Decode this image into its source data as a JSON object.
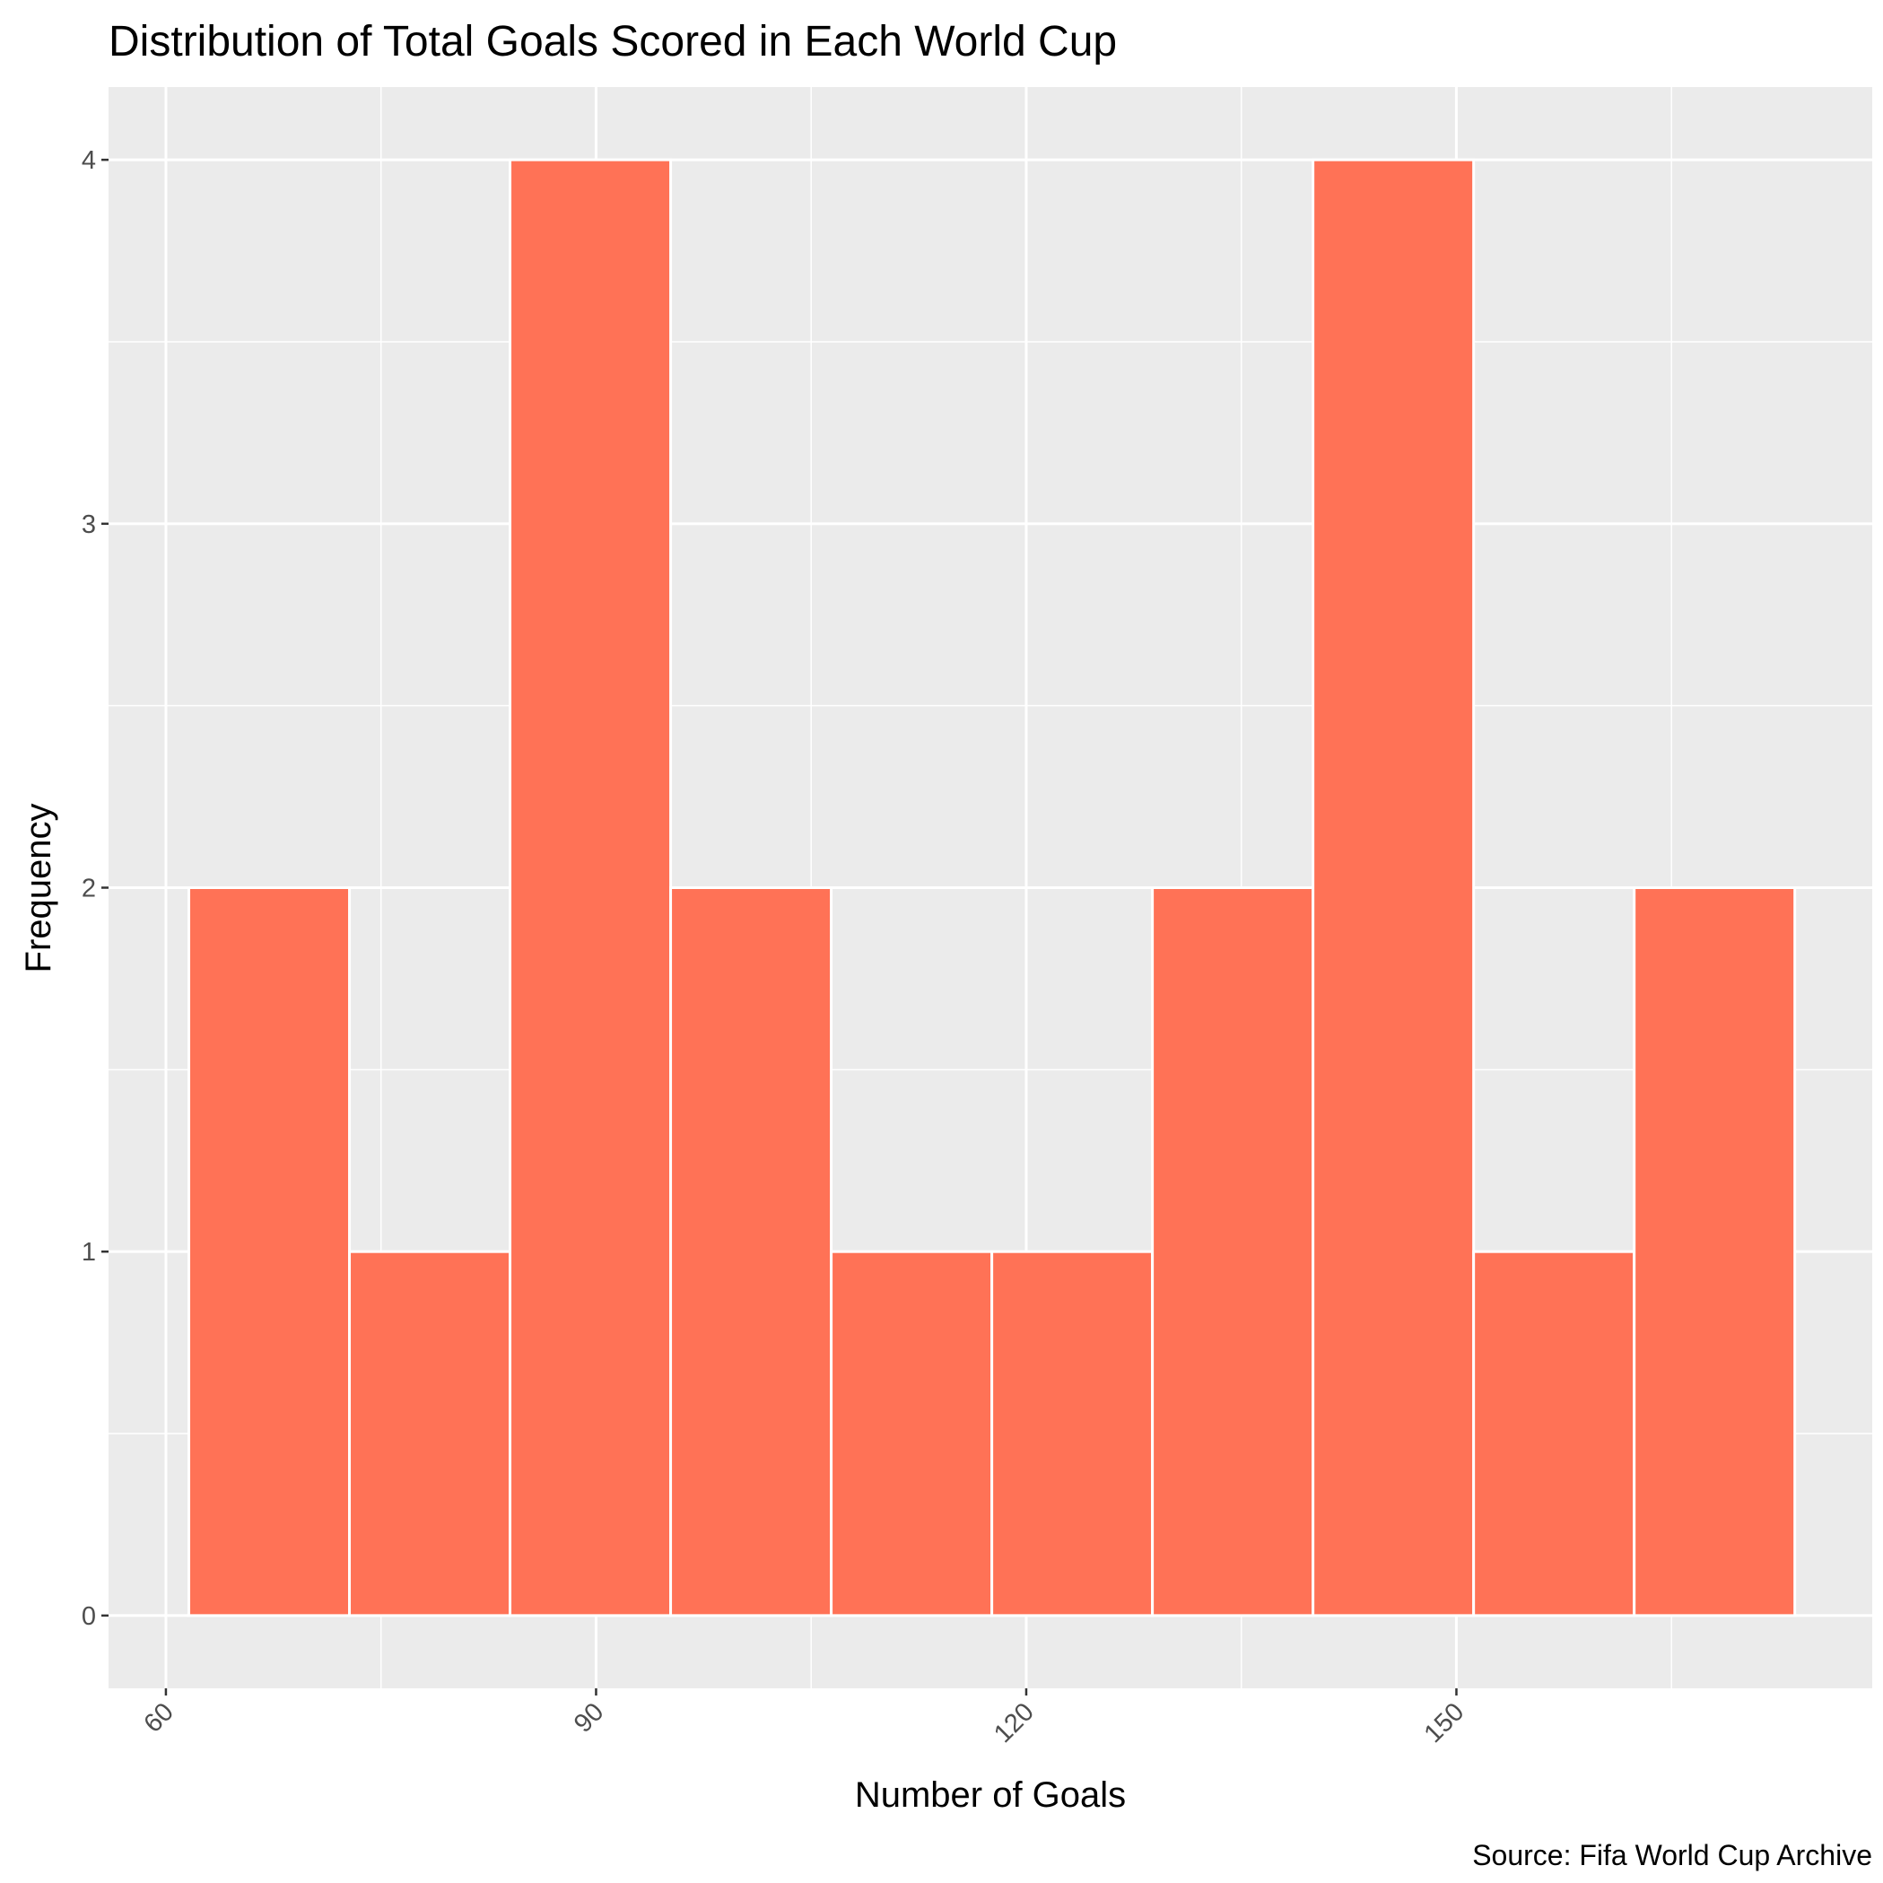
{
  "chart_data": {
    "type": "bar",
    "title": "Distribution of Total Goals Scored in Each World Cup",
    "xlabel": "Number of Goals",
    "ylabel": "Frequency",
    "caption": "Source: Fifa World Cup Archive",
    "bins": [
      {
        "x_start": 61.6,
        "x_end": 72.8,
        "count": 2
      },
      {
        "x_start": 72.8,
        "x_end": 84.0,
        "count": 1
      },
      {
        "x_start": 84.0,
        "x_end": 95.2,
        "count": 4
      },
      {
        "x_start": 95.2,
        "x_end": 106.4,
        "count": 2
      },
      {
        "x_start": 106.4,
        "x_end": 117.6,
        "count": 1
      },
      {
        "x_start": 117.6,
        "x_end": 128.8,
        "count": 1
      },
      {
        "x_start": 128.8,
        "x_end": 140.0,
        "count": 2
      },
      {
        "x_start": 140.0,
        "x_end": 151.2,
        "count": 4
      },
      {
        "x_start": 151.2,
        "x_end": 162.4,
        "count": 1
      },
      {
        "x_start": 162.4,
        "x_end": 173.6,
        "count": 2
      }
    ],
    "xlim": [
      56,
      179
    ],
    "ylim": [
      -0.2,
      4.2
    ],
    "x_ticks": [
      60,
      90,
      120,
      150
    ],
    "x_tick_labels": [
      "60",
      "90",
      "120",
      "150"
    ],
    "x_minor_ticks": [
      75,
      105,
      135,
      165
    ],
    "y_ticks": [
      0,
      1,
      2,
      3,
      4
    ],
    "y_tick_labels": [
      "0",
      "1",
      "2",
      "3",
      "4"
    ],
    "y_minor_ticks": [
      0.5,
      1.5,
      2.5,
      3.5
    ],
    "bar_color": "#FF7256",
    "bar_outline_color": "#FFFFFF",
    "panel_background": "#EBEBEB",
    "grid_color": "#FFFFFF",
    "grid": true,
    "legend": "none"
  }
}
